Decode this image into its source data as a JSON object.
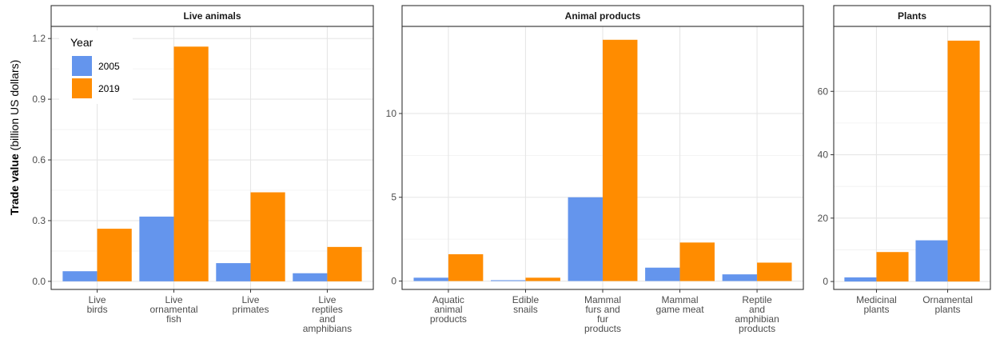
{
  "chart_data": {
    "type": "bar",
    "ylabel_bold": "Trade value",
    "ylabel_rest": " (billion US dollars)",
    "legend": {
      "title": "Year",
      "placement": "top-left",
      "items": [
        {
          "label": "2005",
          "color": "#6495ED"
        },
        {
          "label": "2019",
          "color": "#FF8C00"
        }
      ]
    },
    "grid": true,
    "panels": [
      {
        "title": "Live animals",
        "ylim": [
          -0.04,
          1.26
        ],
        "yticks": [
          0.0,
          0.3,
          0.6,
          0.9,
          1.2
        ],
        "ytick_labels": [
          "0.0",
          "0.3",
          "0.6",
          "0.9",
          "1.2"
        ],
        "categories": [
          {
            "label": [
              "Live",
              "birds"
            ],
            "values": [
              0.05,
              0.26
            ]
          },
          {
            "label": [
              "Live",
              "ornamental",
              "fish"
            ],
            "values": [
              0.32,
              1.16
            ]
          },
          {
            "label": [
              "Live",
              "primates"
            ],
            "values": [
              0.09,
              0.44
            ]
          },
          {
            "label": [
              "Live",
              "reptiles",
              "and",
              "amphibians"
            ],
            "values": [
              0.04,
              0.17
            ]
          }
        ]
      },
      {
        "title": "Animal products",
        "ylim": [
          -0.5,
          15.2
        ],
        "yticks": [
          0,
          5,
          10
        ],
        "ytick_labels": [
          "0",
          "5",
          "10"
        ],
        "categories": [
          {
            "label": [
              "Aquatic",
              "animal",
              "products"
            ],
            "values": [
              0.2,
              1.6
            ]
          },
          {
            "label": [
              "Edible",
              "snails"
            ],
            "values": [
              0.05,
              0.2
            ]
          },
          {
            "label": [
              "Mammal",
              "furs and",
              "fur",
              "products"
            ],
            "values": [
              5.0,
              14.4
            ]
          },
          {
            "label": [
              "Mammal",
              "game meat"
            ],
            "values": [
              0.8,
              2.3
            ]
          },
          {
            "label": [
              "Reptile",
              "and",
              "amphibian",
              "products"
            ],
            "values": [
              0.4,
              1.1
            ]
          }
        ]
      },
      {
        "title": "Plants",
        "ylim": [
          -2.5,
          80.5
        ],
        "yticks": [
          0,
          20,
          40,
          60
        ],
        "ytick_labels": [
          "0",
          "20",
          "40",
          "60"
        ],
        "categories": [
          {
            "label": [
              "Medicinal",
              "plants"
            ],
            "values": [
              1.3,
              9.3
            ]
          },
          {
            "label": [
              "Ornamental",
              "plants"
            ],
            "values": [
              13.0,
              76.0
            ]
          }
        ]
      }
    ]
  }
}
